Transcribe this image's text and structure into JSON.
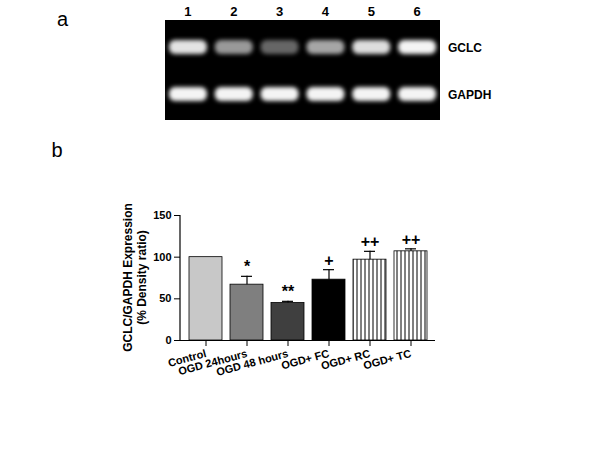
{
  "gel": {
    "panel_label": "a",
    "lanes": [
      1,
      2,
      3,
      4,
      5,
      6
    ],
    "bands": [
      "GCLC",
      "GAPDH"
    ]
  },
  "chart_data": {
    "type": "bar",
    "panel_label": "b",
    "y_label": [
      "GCLC/GAPDH Expression",
      "(% Density ratio)"
    ],
    "categories": [
      "Control",
      "OGD 24hours",
      "OGD 48 hours",
      "OGD+ FC",
      "OGD+ RC",
      "OGD+ TC"
    ],
    "values": [
      100,
      67,
      45,
      73,
      97,
      107
    ],
    "errors": [
      0,
      10,
      2,
      12,
      10,
      3
    ],
    "significance": [
      null,
      "*",
      "**",
      "+",
      "++",
      "++"
    ],
    "colors": [
      "#c8c8c8",
      "#7f7f7f",
      "#3f3f3f",
      "#000000",
      "#ffffff",
      "#ffffff"
    ],
    "ylim": [
      0,
      150
    ],
    "yticks": [
      0,
      50,
      100,
      150
    ],
    "grid": false
  }
}
